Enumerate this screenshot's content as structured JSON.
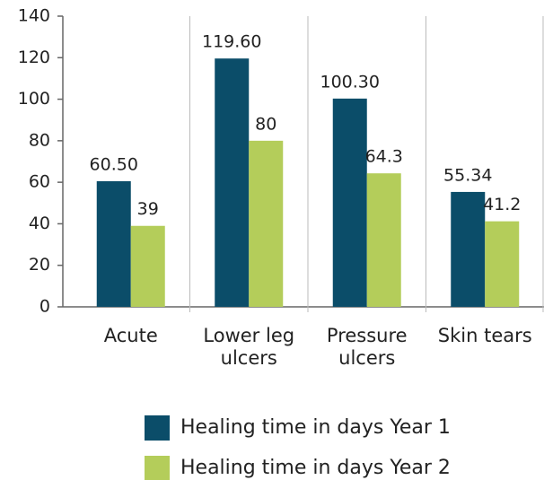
{
  "chart_data": {
    "type": "bar",
    "categories": [
      "Acute",
      "Lower leg ulcers",
      "Pressure ulcers",
      "Skin tears"
    ],
    "series": [
      {
        "name": "Healing time in days Year 1",
        "color": "#0b4d69",
        "values": [
          60.5,
          119.6,
          100.3,
          55.34
        ],
        "value_labels": [
          "60.50",
          "119.60",
          "100.30",
          "55.34"
        ]
      },
      {
        "name": "Healing time in days Year 2",
        "color": "#b4cd5a",
        "values": [
          39,
          80,
          64.3,
          41.2
        ]
      }
    ],
    "ylim": [
      0,
      140
    ],
    "yticks": [
      0,
      20,
      40,
      60,
      80,
      100,
      120,
      140
    ],
    "legend": "bottom"
  }
}
